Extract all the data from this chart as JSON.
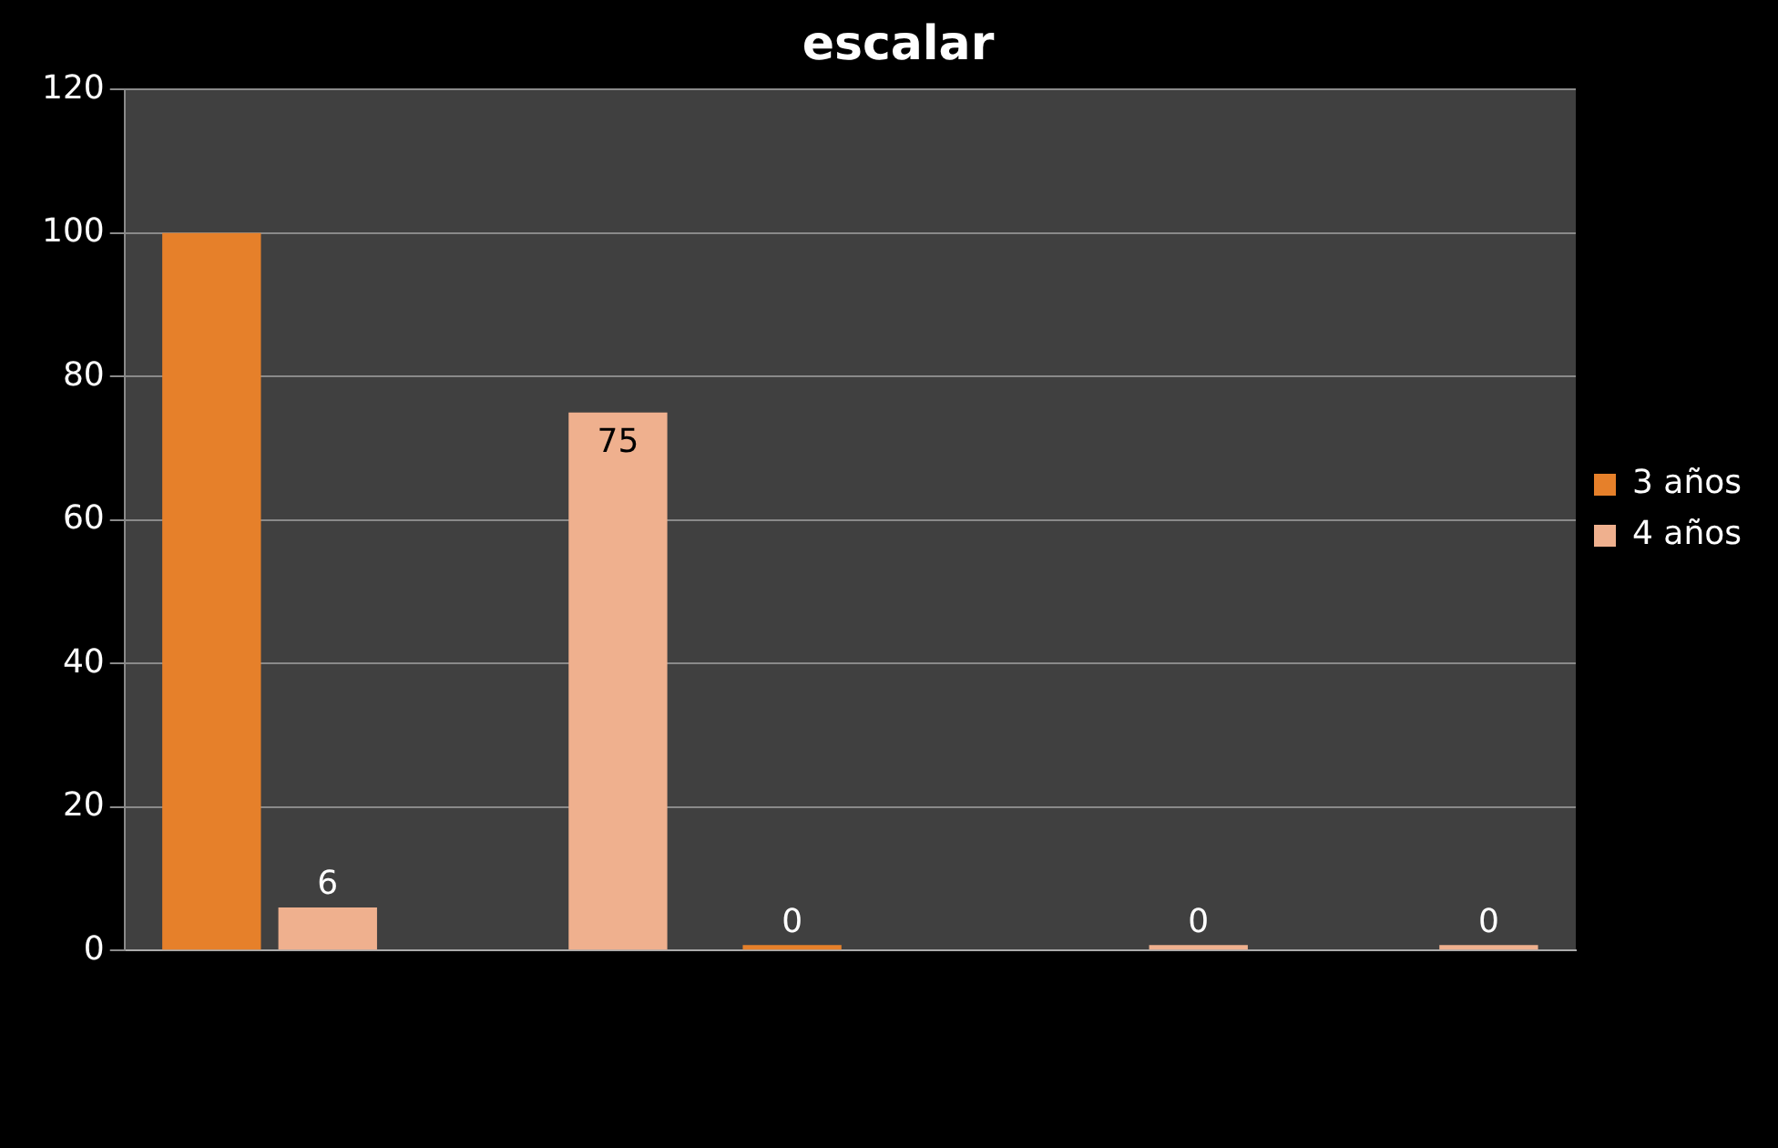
{
  "chart_data": {
    "type": "bar",
    "title": "escalar",
    "categories": [
      null,
      null,
      null,
      null,
      null
    ],
    "series": [
      {
        "name": "3 años",
        "color": "#e6802a",
        "values": [
          100,
          null,
          0,
          null,
          null
        ],
        "value_labels": [
          null,
          null,
          "0",
          null,
          null
        ]
      },
      {
        "name": "4 años",
        "color": "#efb08e",
        "values": [
          6,
          75,
          null,
          0,
          0
        ],
        "value_labels": [
          "6",
          "75",
          null,
          "0",
          "0"
        ]
      }
    ],
    "ylim": [
      0,
      120
    ],
    "yticks": [
      0,
      20,
      40,
      60,
      80,
      100,
      120
    ],
    "grid": "y",
    "legend": "right"
  }
}
